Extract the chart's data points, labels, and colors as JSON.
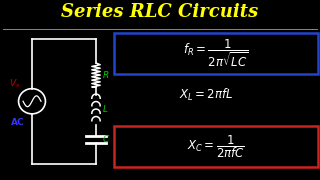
{
  "title": "Series RLC Circuits",
  "title_color": "#FFFF00",
  "title_fontsize": 13,
  "bg_color": "#000000",
  "separator_color": "#888888",
  "formula1_text": "$f_R = \\dfrac{1}{2\\pi\\sqrt{LC}}$",
  "formula2_text": "$X_L = 2\\pi f L$",
  "formula3_text": "$X_C = \\dfrac{1}{2\\pi f C}$",
  "formula_color": "#FFFFFF",
  "box1_color": "#2244CC",
  "box3_color": "#CC2222",
  "vs_color": "#CC0000",
  "ac_color": "#3333FF",
  "rlc_color": "#00CC00",
  "circuit_color": "#FFFFFF",
  "fig_w": 3.2,
  "fig_h": 1.8,
  "dpi": 100
}
